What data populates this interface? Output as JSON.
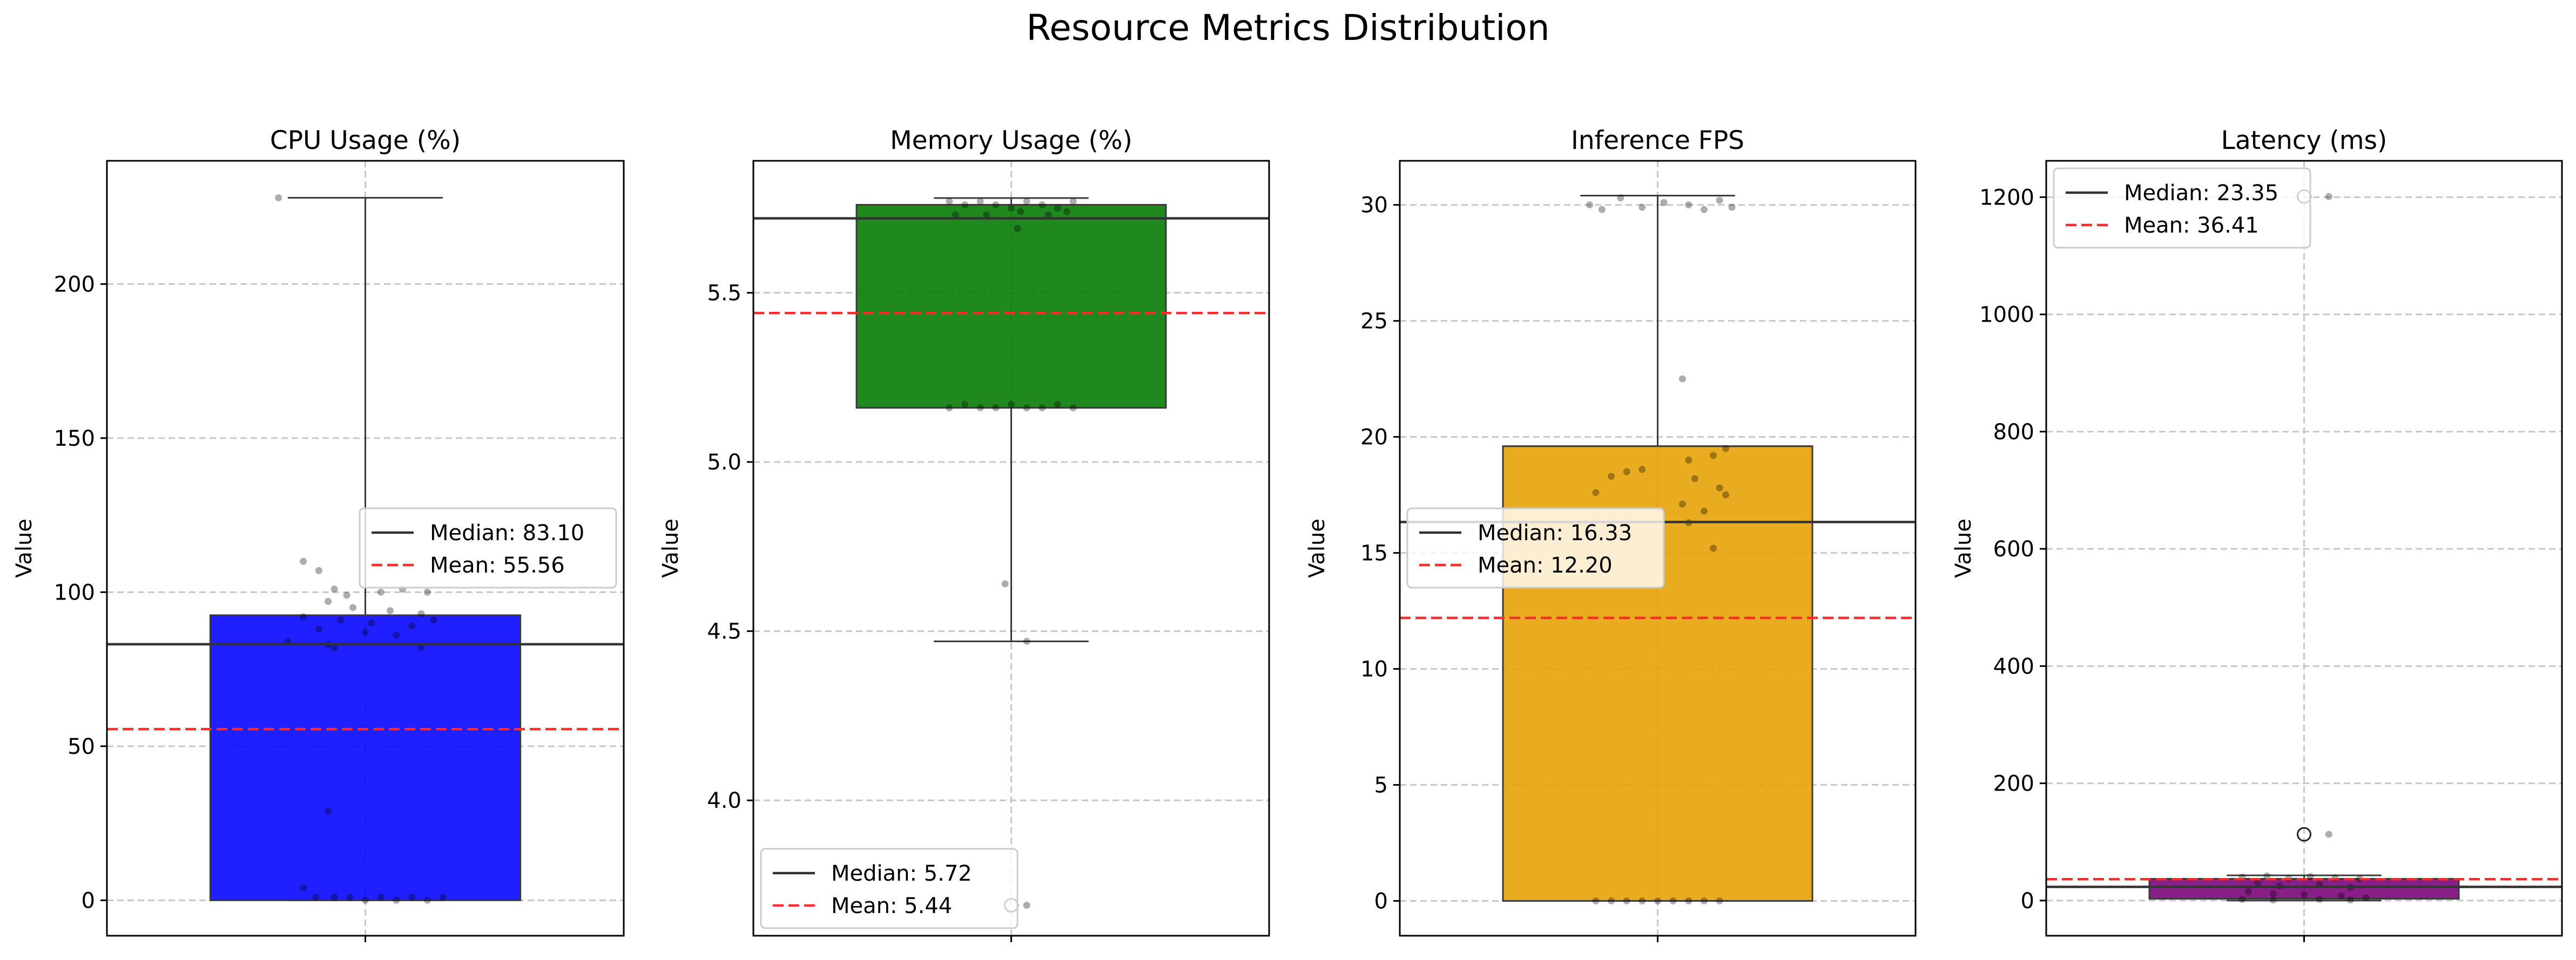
{
  "figure": {
    "title": "Resource Metrics Distribution"
  },
  "chart_data": [
    {
      "type": "box",
      "title": "CPU Usage (%)",
      "ylabel": "Value",
      "ylim": [
        -11.5,
        240
      ],
      "yticks": [
        0,
        50,
        100,
        150,
        200
      ],
      "box_color": "#0000ff",
      "box": {
        "q1": 0.0,
        "median": 92.5,
        "q3": 92.5,
        "whisker_low": 0.0,
        "whisker_high": 228.0
      },
      "fliers": [],
      "median_line": 83.1,
      "mean_line": 55.56,
      "legend": {
        "position": "center-right",
        "median_label": "Median: 83.10",
        "mean_label": "Mean: 55.56"
      },
      "points": [
        {
          "dx": -0.28,
          "y": 228
        },
        {
          "dx": -0.2,
          "y": 110
        },
        {
          "dx": -0.15,
          "y": 107
        },
        {
          "dx": -0.1,
          "y": 101
        },
        {
          "dx": -0.06,
          "y": 99
        },
        {
          "dx": 0.05,
          "y": 100
        },
        {
          "dx": 0.12,
          "y": 101
        },
        {
          "dx": 0.2,
          "y": 100
        },
        {
          "dx": -0.12,
          "y": 97
        },
        {
          "dx": -0.04,
          "y": 95
        },
        {
          "dx": 0.08,
          "y": 94
        },
        {
          "dx": 0.18,
          "y": 93
        },
        {
          "dx": -0.2,
          "y": 92
        },
        {
          "dx": -0.08,
          "y": 91
        },
        {
          "dx": 0.02,
          "y": 90
        },
        {
          "dx": 0.15,
          "y": 89
        },
        {
          "dx": 0.22,
          "y": 91
        },
        {
          "dx": -0.15,
          "y": 88
        },
        {
          "dx": 0.0,
          "y": 87
        },
        {
          "dx": 0.1,
          "y": 86
        },
        {
          "dx": -0.25,
          "y": 84
        },
        {
          "dx": -0.12,
          "y": 83
        },
        {
          "dx": -0.1,
          "y": 82
        },
        {
          "dx": 0.18,
          "y": 82
        },
        {
          "dx": -0.12,
          "y": 29
        },
        {
          "dx": -0.2,
          "y": 4
        },
        {
          "dx": -0.16,
          "y": 1
        },
        {
          "dx": -0.1,
          "y": 1
        },
        {
          "dx": -0.05,
          "y": 1
        },
        {
          "dx": 0.0,
          "y": 0
        },
        {
          "dx": 0.05,
          "y": 1
        },
        {
          "dx": 0.1,
          "y": 0
        },
        {
          "dx": 0.15,
          "y": 1
        },
        {
          "dx": 0.2,
          "y": 0
        },
        {
          "dx": 0.25,
          "y": 1
        }
      ]
    },
    {
      "type": "box",
      "title": "Memory Usage (%)",
      "ylabel": "Value",
      "ylim": [
        3.6,
        5.89
      ],
      "yticks": [
        4.0,
        4.5,
        5.0,
        5.5
      ],
      "tick_decimals": 1,
      "box_color": "#007700",
      "box": {
        "q1": 5.16,
        "median": 5.76,
        "q3": 5.76,
        "whisker_low": 4.47,
        "whisker_high": 5.78
      },
      "fliers": [
        3.69
      ],
      "median_line": 5.72,
      "mean_line": 5.44,
      "legend": {
        "position": "lower-left",
        "median_label": "Median: 5.72",
        "mean_label": "Mean: 5.44"
      },
      "points": [
        {
          "dx": -0.2,
          "y": 5.77
        },
        {
          "dx": -0.15,
          "y": 5.76
        },
        {
          "dx": -0.1,
          "y": 5.77
        },
        {
          "dx": -0.05,
          "y": 5.76
        },
        {
          "dx": 0.0,
          "y": 5.75
        },
        {
          "dx": 0.05,
          "y": 5.77
        },
        {
          "dx": 0.1,
          "y": 5.76
        },
        {
          "dx": 0.15,
          "y": 5.75
        },
        {
          "dx": 0.2,
          "y": 5.77
        },
        {
          "dx": -0.18,
          "y": 5.73
        },
        {
          "dx": -0.08,
          "y": 5.73
        },
        {
          "dx": 0.03,
          "y": 5.74
        },
        {
          "dx": 0.12,
          "y": 5.73
        },
        {
          "dx": 0.18,
          "y": 5.74
        },
        {
          "dx": 0.02,
          "y": 5.69
        },
        {
          "dx": -0.2,
          "y": 5.16
        },
        {
          "dx": -0.15,
          "y": 5.17
        },
        {
          "dx": -0.1,
          "y": 5.16
        },
        {
          "dx": -0.05,
          "y": 5.16
        },
        {
          "dx": 0.0,
          "y": 5.17
        },
        {
          "dx": 0.05,
          "y": 5.16
        },
        {
          "dx": 0.1,
          "y": 5.16
        },
        {
          "dx": 0.15,
          "y": 5.17
        },
        {
          "dx": 0.2,
          "y": 5.16
        },
        {
          "dx": -0.02,
          "y": 4.64
        },
        {
          "dx": 0.05,
          "y": 4.47
        },
        {
          "dx": 0.05,
          "y": 3.69
        }
      ]
    },
    {
      "type": "box",
      "title": "Inference FPS",
      "ylabel": "Value",
      "ylim": [
        -1.5,
        31.9
      ],
      "yticks": [
        0,
        5,
        10,
        15,
        20,
        25,
        30
      ],
      "box_color": "#e69f00",
      "box": {
        "q1": 0.0,
        "median": 19.6,
        "q3": 19.6,
        "whisker_low": 0.0,
        "whisker_high": 30.4
      },
      "fliers": [],
      "median_line": 16.33,
      "mean_line": 12.2,
      "legend": {
        "position": "center-left",
        "median_label": "Median: 16.33",
        "mean_label": "Mean: 12.20"
      },
      "points": [
        {
          "dx": -0.22,
          "y": 30.0
        },
        {
          "dx": -0.18,
          "y": 29.8
        },
        {
          "dx": -0.12,
          "y": 30.3
        },
        {
          "dx": -0.05,
          "y": 29.9
        },
        {
          "dx": 0.02,
          "y": 30.1
        },
        {
          "dx": 0.1,
          "y": 30.0
        },
        {
          "dx": 0.15,
          "y": 29.8
        },
        {
          "dx": 0.2,
          "y": 30.2
        },
        {
          "dx": 0.24,
          "y": 29.9
        },
        {
          "dx": 0.08,
          "y": 22.5
        },
        {
          "dx": 0.22,
          "y": 19.5
        },
        {
          "dx": 0.18,
          "y": 19.2
        },
        {
          "dx": 0.1,
          "y": 19.0
        },
        {
          "dx": -0.05,
          "y": 18.6
        },
        {
          "dx": -0.1,
          "y": 18.5
        },
        {
          "dx": -0.15,
          "y": 18.3
        },
        {
          "dx": 0.12,
          "y": 18.2
        },
        {
          "dx": 0.2,
          "y": 17.8
        },
        {
          "dx": -0.2,
          "y": 17.6
        },
        {
          "dx": 0.22,
          "y": 17.5
        },
        {
          "dx": 0.08,
          "y": 17.1
        },
        {
          "dx": 0.15,
          "y": 16.8
        },
        {
          "dx": 0.1,
          "y": 16.3
        },
        {
          "dx": 0.18,
          "y": 15.2
        },
        {
          "dx": -0.2,
          "y": 0
        },
        {
          "dx": -0.15,
          "y": 0
        },
        {
          "dx": -0.1,
          "y": 0
        },
        {
          "dx": -0.05,
          "y": 0
        },
        {
          "dx": 0.0,
          "y": 0
        },
        {
          "dx": 0.05,
          "y": 0
        },
        {
          "dx": 0.1,
          "y": 0
        },
        {
          "dx": 0.15,
          "y": 0
        },
        {
          "dx": 0.2,
          "y": 0
        }
      ]
    },
    {
      "type": "box",
      "title": "Latency (ms)",
      "ylabel": "Value",
      "ylim": [
        -60,
        1262
      ],
      "yticks": [
        0,
        200,
        400,
        600,
        800,
        1000,
        1200
      ],
      "box_color": "#770077",
      "box": {
        "q1": 3,
        "median": 37,
        "q3": 37,
        "whisker_low": 0,
        "whisker_high": 43
      },
      "fliers": [
        113,
        1201
      ],
      "median_line": 23.35,
      "mean_line": 36.41,
      "legend": {
        "position": "top-left",
        "median_label": "Median: 23.35",
        "mean_label": "Mean: 36.41"
      },
      "points": [
        {
          "dx": 0.08,
          "y": 1201
        },
        {
          "dx": 0.08,
          "y": 113
        },
        {
          "dx": -0.2,
          "y": 40
        },
        {
          "dx": -0.12,
          "y": 42
        },
        {
          "dx": -0.05,
          "y": 38
        },
        {
          "dx": 0.02,
          "y": 41
        },
        {
          "dx": 0.1,
          "y": 39
        },
        {
          "dx": 0.18,
          "y": 37
        },
        {
          "dx": -0.15,
          "y": 30
        },
        {
          "dx": -0.08,
          "y": 25
        },
        {
          "dx": 0.05,
          "y": 28
        },
        {
          "dx": 0.15,
          "y": 22
        },
        {
          "dx": -0.18,
          "y": 15
        },
        {
          "dx": -0.1,
          "y": 12
        },
        {
          "dx": 0.0,
          "y": 10
        },
        {
          "dx": 0.12,
          "y": 8
        },
        {
          "dx": 0.2,
          "y": 5
        },
        {
          "dx": -0.2,
          "y": 2
        },
        {
          "dx": -0.1,
          "y": 1
        },
        {
          "dx": 0.05,
          "y": 2
        },
        {
          "dx": 0.15,
          "y": 1
        }
      ]
    }
  ]
}
